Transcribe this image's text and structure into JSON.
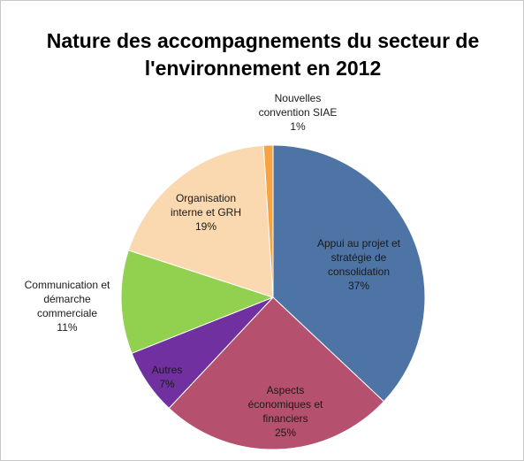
{
  "chart_data": {
    "type": "pie",
    "title": "Nature des accompagnements du secteur de l'environnement en 2012",
    "categories": [
      "Appui au projet et stratégie de consolidation",
      "Aspects économiques et financiers",
      "Autres",
      "Communication et démarche commerciale",
      "Organisation interne et GRH",
      "Nouvelles convention SIAE"
    ],
    "values": [
      37,
      25,
      7,
      11,
      19,
      1
    ],
    "value_labels": [
      "37%",
      "25%",
      "7%",
      "11%",
      "19%",
      "1%"
    ],
    "colors": [
      "#4e74a5",
      "#b6506f",
      "#7030a0",
      "#92d050",
      "#fad8b0",
      "#f6a443"
    ]
  }
}
